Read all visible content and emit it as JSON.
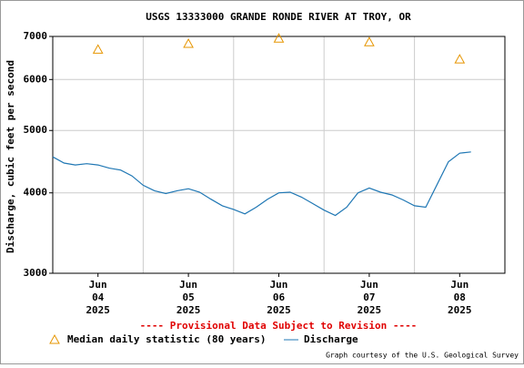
{
  "chart_data": {
    "type": "line",
    "title": "USGS 13333000 GRANDE RONDE RIVER AT TROY, OR",
    "y_label": "Discharge, cubic feet per second",
    "notice": "---- Provisional Data Subject to Revision ----",
    "credit": "Graph courtesy of the U.S. Geological Survey",
    "yscale": "log",
    "grid": true,
    "ylim": [
      3000,
      7000
    ],
    "yticks": [
      3000,
      4000,
      5000,
      6000,
      7000
    ],
    "xlim": [
      "2025-06-04 00:00",
      "2025-06-09 00:00"
    ],
    "xticks": [
      {
        "value": "2025-06-04 12:00",
        "label": "Jun 04 2025"
      },
      {
        "value": "2025-06-05 12:00",
        "label": "Jun 05 2025"
      },
      {
        "value": "2025-06-06 12:00",
        "label": "Jun 06 2025"
      },
      {
        "value": "2025-06-07 12:00",
        "label": "Jun 07 2025"
      },
      {
        "value": "2025-06-08 12:00",
        "label": "Jun 08 2025"
      }
    ],
    "series": [
      {
        "name": "Median daily statistic (80 years)",
        "color": "#e69500",
        "marker": "triangle",
        "x": [
          "2025-06-04 12:00",
          "2025-06-05 12:00",
          "2025-06-06 12:00",
          "2025-06-07 12:00",
          "2025-06-08 12:00"
        ],
        "values": [
          6680,
          6820,
          6950,
          6860,
          6450
        ]
      },
      {
        "name": "Discharge",
        "color": "#1f77b4",
        "marker": "line",
        "x": [
          "2025-06-04 00:00",
          "2025-06-04 03:00",
          "2025-06-04 06:00",
          "2025-06-04 09:00",
          "2025-06-04 12:00",
          "2025-06-04 15:00",
          "2025-06-04 18:00",
          "2025-06-04 21:00",
          "2025-06-05 00:00",
          "2025-06-05 03:00",
          "2025-06-05 06:00",
          "2025-06-05 09:00",
          "2025-06-05 12:00",
          "2025-06-05 15:00",
          "2025-06-05 18:00",
          "2025-06-05 21:00",
          "2025-06-06 00:00",
          "2025-06-06 03:00",
          "2025-06-06 06:00",
          "2025-06-06 09:00",
          "2025-06-06 12:00",
          "2025-06-06 15:00",
          "2025-06-06 18:00",
          "2025-06-06 21:00",
          "2025-06-07 00:00",
          "2025-06-07 03:00",
          "2025-06-07 06:00",
          "2025-06-07 09:00",
          "2025-06-07 12:00",
          "2025-06-07 15:00",
          "2025-06-07 18:00",
          "2025-06-07 21:00",
          "2025-06-08 00:00",
          "2025-06-08 03:00",
          "2025-06-08 06:00",
          "2025-06-08 09:00",
          "2025-06-08 12:00",
          "2025-06-08 15:00"
        ],
        "values": [
          4550,
          4450,
          4420,
          4440,
          4420,
          4370,
          4340,
          4250,
          4110,
          4030,
          3990,
          4030,
          4060,
          4010,
          3910,
          3820,
          3770,
          3710,
          3800,
          3910,
          4000,
          4010,
          3940,
          3850,
          3760,
          3690,
          3800,
          4000,
          4070,
          4010,
          3970,
          3900,
          3820,
          3800,
          4120,
          4470,
          4610,
          4630
        ]
      }
    ]
  }
}
